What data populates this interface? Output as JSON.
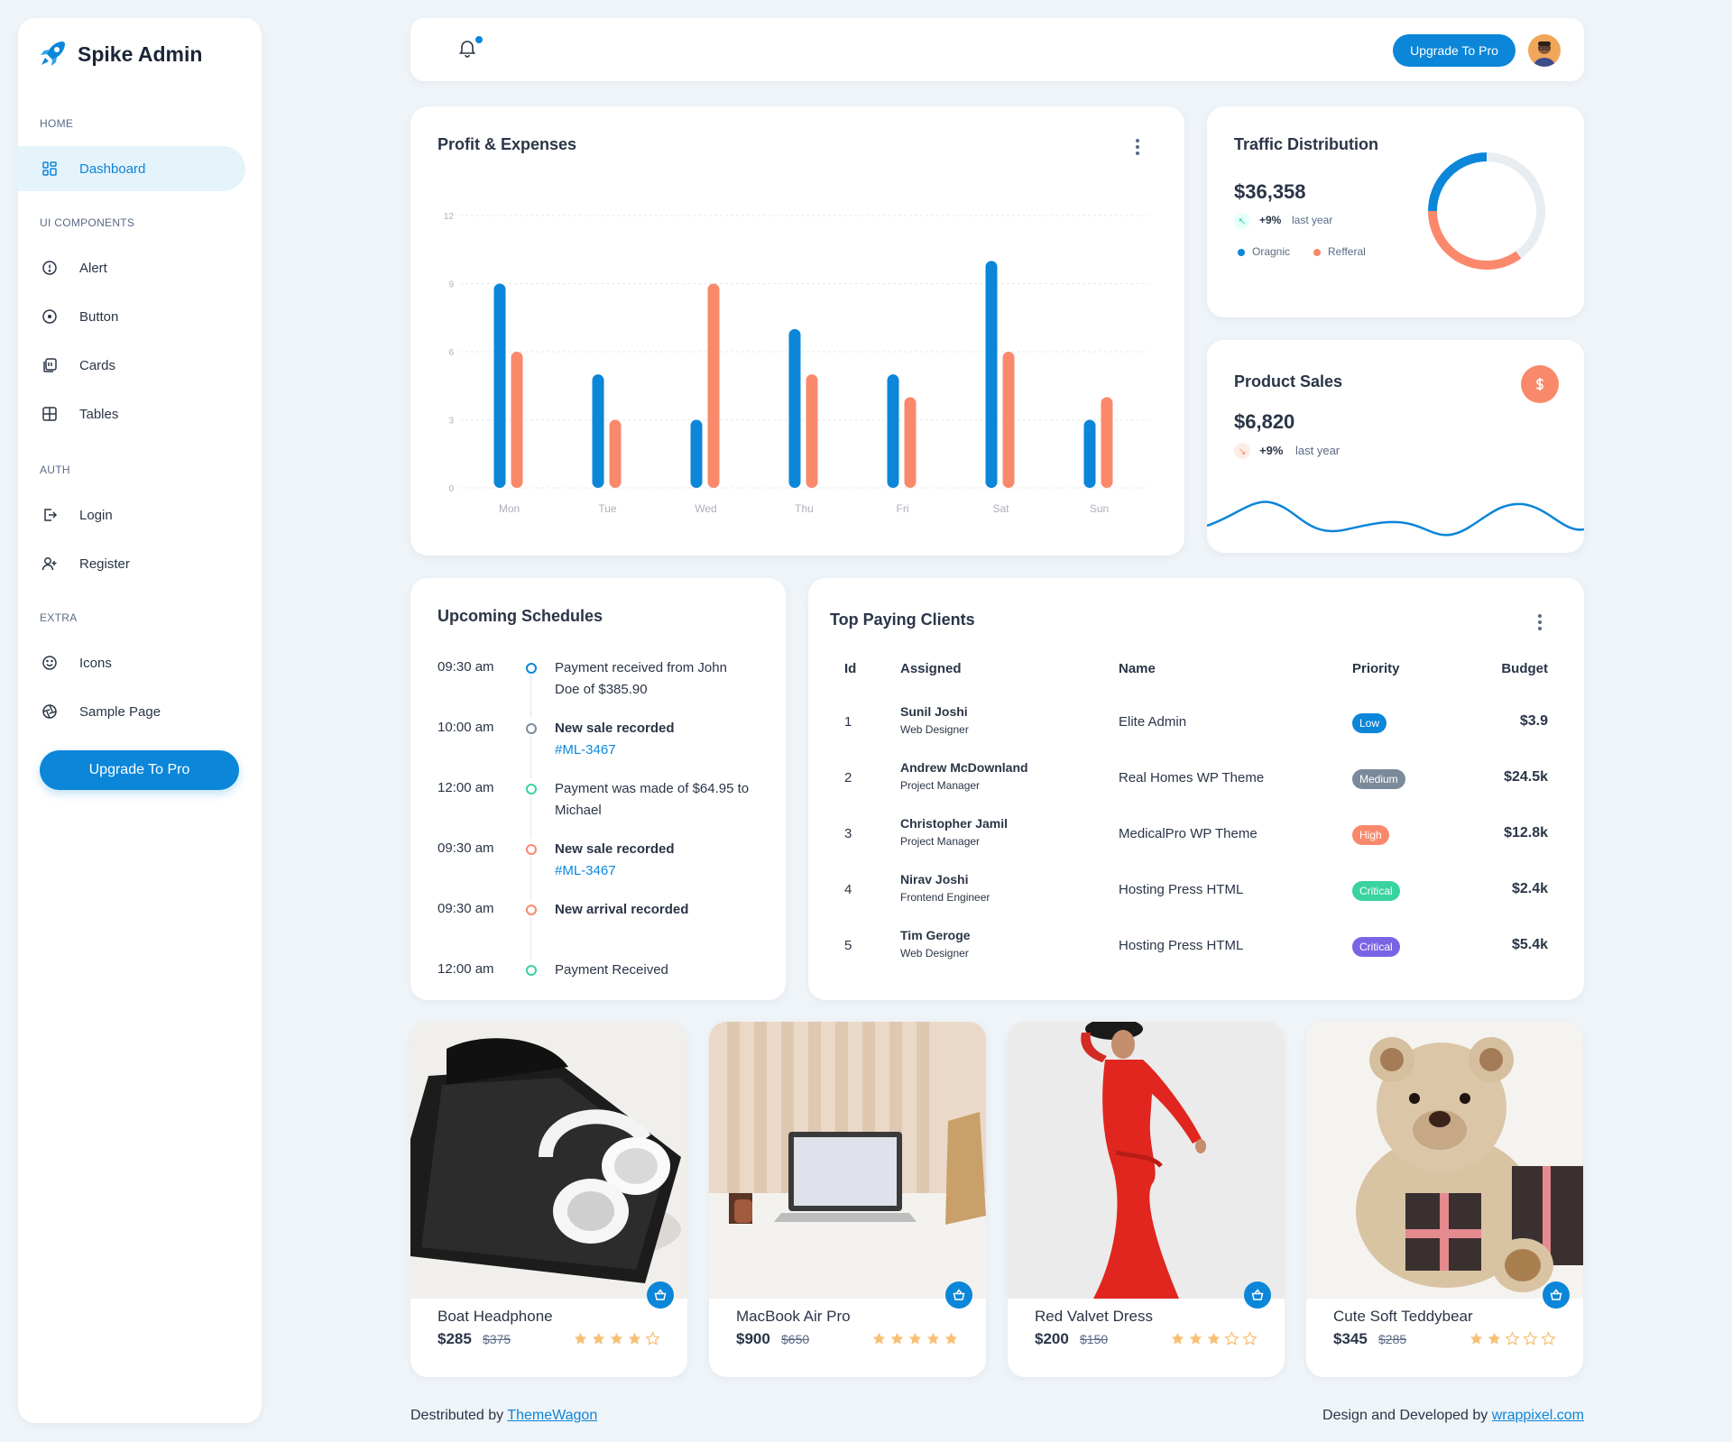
{
  "brand": {
    "name": "Spike Admin"
  },
  "sidebar": {
    "sections": [
      {
        "caption": "HOME",
        "items": [
          {
            "label": "Dashboard",
            "icon": "dashboard-icon",
            "active": true
          }
        ]
      },
      {
        "caption": "UI COMPONENTS",
        "items": [
          {
            "label": "Alert",
            "icon": "alert-circle-icon"
          },
          {
            "label": "Button",
            "icon": "circle-dot-icon"
          },
          {
            "label": "Cards",
            "icon": "cards-icon"
          },
          {
            "label": "Tables",
            "icon": "table-icon"
          }
        ]
      },
      {
        "caption": "AUTH",
        "items": [
          {
            "label": "Login",
            "icon": "login-icon"
          },
          {
            "label": "Register",
            "icon": "user-plus-icon"
          }
        ]
      },
      {
        "caption": "EXTRA",
        "items": [
          {
            "label": "Icons",
            "icon": "mood-happy-icon"
          },
          {
            "label": "Sample Page",
            "icon": "aperture-icon"
          }
        ]
      }
    ],
    "upgrade_label": "Upgrade To Pro"
  },
  "header": {
    "upgrade_label": "Upgrade To Pro"
  },
  "colors": {
    "primary": "#0b86d9",
    "secondary": "#fa896b",
    "success": "#39d3a0",
    "purple": "#7b63e6",
    "gray": "#7b8a9a"
  },
  "profit": {
    "title": "Profit & Expenses",
    "chart_data": {
      "type": "bar",
      "categories": [
        "Mon",
        "Tue",
        "Wed",
        "Thu",
        "Fri",
        "Sat",
        "Sun"
      ],
      "series": [
        {
          "values": [
            9,
            5,
            3,
            7,
            5,
            10,
            3
          ]
        },
        {
          "values": [
            6,
            3,
            9,
            5,
            4,
            6,
            4
          ]
        }
      ],
      "ylim": [
        0,
        12
      ],
      "yticks": [
        0,
        3,
        6,
        9,
        12
      ],
      "grid": true
    }
  },
  "traffic": {
    "title": "Traffic Distribution",
    "amount": "$36,358",
    "change": "+9%",
    "period": "last year",
    "legend": [
      "Oragnic",
      "Refferal"
    ],
    "chart_data": {
      "type": "pie",
      "labels": [
        "Oragnic",
        "Refferal",
        "Other"
      ],
      "values": [
        25,
        35,
        40
      ]
    }
  },
  "sales": {
    "title": "Product Sales",
    "amount": "$6,820",
    "change": "+9%",
    "period": "last year",
    "icon": "dollar-icon"
  },
  "schedules": {
    "title": "Upcoming Schedules",
    "items": [
      {
        "time": "09:30 am",
        "text": "Payment received from John Doe of $385.90",
        "link": "",
        "bold": false,
        "color": "#0b86d9"
      },
      {
        "time": "10:00 am",
        "text": "New sale recorded",
        "link": "#ML-3467",
        "bold": true,
        "color": "#7b8a9a"
      },
      {
        "time": "12:00 am",
        "text": "Payment was made of $64.95 to Michael",
        "link": "",
        "bold": false,
        "color": "#39d3a0"
      },
      {
        "time": "09:30 am",
        "text": "New sale recorded",
        "link": "#ML-3467",
        "bold": true,
        "color": "#fa896b"
      },
      {
        "time": "09:30 am",
        "text": "New arrival recorded",
        "link": "",
        "bold": true,
        "color": "#fa896b"
      },
      {
        "time": "12:00 am",
        "text": "Payment Received",
        "link": "",
        "bold": false,
        "color": "#39d3a0"
      }
    ]
  },
  "clients": {
    "title": "Top Paying Clients",
    "columns": [
      "Id",
      "Assigned",
      "Name",
      "Priority",
      "Budget"
    ],
    "rows": [
      {
        "id": "1",
        "assigned": "Sunil Joshi",
        "role": "Web Designer",
        "name": "Elite Admin",
        "priority": "Low",
        "priority_color": "#0b86d9",
        "budget": "$3.9"
      },
      {
        "id": "2",
        "assigned": "Andrew McDownland",
        "role": "Project Manager",
        "name": "Real Homes WP Theme",
        "priority": "Medium",
        "priority_color": "#7b8a9a",
        "budget": "$24.5k"
      },
      {
        "id": "3",
        "assigned": "Christopher Jamil",
        "role": "Project Manager",
        "name": "MedicalPro WP Theme",
        "priority": "High",
        "priority_color": "#fa896b",
        "budget": "$12.8k"
      },
      {
        "id": "4",
        "assigned": "Nirav Joshi",
        "role": "Frontend Engineer",
        "name": "Hosting Press HTML",
        "priority": "Critical",
        "priority_color": "#39d3a0",
        "budget": "$2.4k"
      },
      {
        "id": "5",
        "assigned": "Tim Geroge",
        "role": "Web Designer",
        "name": "Hosting Press HTML",
        "priority": "Critical",
        "priority_color": "#7b63e6",
        "budget": "$5.4k"
      }
    ]
  },
  "products": [
    {
      "name": "Boat Headphone",
      "price": "$285",
      "old_price": "$375",
      "rating": 4,
      "image": "headphone-photo"
    },
    {
      "name": "MacBook Air Pro",
      "price": "$900",
      "old_price": "$650",
      "rating": 5,
      "image": "laptop-photo"
    },
    {
      "name": "Red Valvet Dress",
      "price": "$200",
      "old_price": "$150",
      "rating": 3,
      "image": "dress-photo"
    },
    {
      "name": "Cute Soft Teddybear",
      "price": "$345",
      "old_price": "$285",
      "rating": 2,
      "image": "teddybear-photo"
    }
  ],
  "footer": {
    "left_text": "Destributed by",
    "left_link": "ThemeWagon",
    "right_text": "Design and Developed by",
    "right_link": "wrappixel.com"
  }
}
